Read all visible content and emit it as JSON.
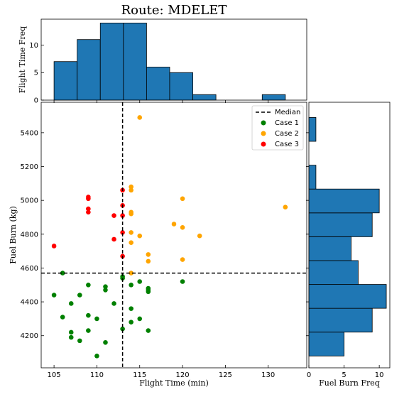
{
  "chart_data": [
    {
      "type": "scatter",
      "title": "Route: MDELET",
      "xlabel": "Flight Time (min)",
      "ylabel": "Fuel Burn (kg)",
      "xlim": [
        103.5,
        134.5
      ],
      "ylim": [
        4010,
        5580
      ],
      "x_ticks": [
        105,
        110,
        115,
        120,
        125,
        130
      ],
      "y_ticks": [
        4200,
        4400,
        4600,
        4800,
        5000,
        5200,
        5400
      ],
      "median": {
        "label": "Median",
        "x": 113,
        "y": 4570
      },
      "legend_position": "top-right",
      "series": [
        {
          "name": "Case 1",
          "color": "#008000",
          "points": [
            [
              105,
              4440
            ],
            [
              106,
              4570
            ],
            [
              106,
              4310
            ],
            [
              107,
              4390
            ],
            [
              107,
              4220
            ],
            [
              107,
              4190
            ],
            [
              108,
              4440
            ],
            [
              108,
              4170
            ],
            [
              109,
              4500
            ],
            [
              109,
              4320
            ],
            [
              109,
              4230
            ],
            [
              110,
              4300
            ],
            [
              110,
              4080
            ],
            [
              111,
              4490
            ],
            [
              111,
              4470
            ],
            [
              111,
              4160
            ],
            [
              112,
              4390
            ],
            [
              113,
              4550
            ],
            [
              113,
              4540
            ],
            [
              113,
              4240
            ],
            [
              114,
              4500
            ],
            [
              114,
              4360
            ],
            [
              114,
              4280
            ],
            [
              115,
              4520
            ],
            [
              115,
              4300
            ],
            [
              116,
              4480
            ],
            [
              116,
              4470
            ],
            [
              116,
              4460
            ],
            [
              116,
              4230
            ],
            [
              120,
              4520
            ]
          ]
        },
        {
          "name": "Case 2",
          "color": "#FFA500",
          "points": [
            [
              114,
              5080
            ],
            [
              114,
              5060
            ],
            [
              114,
              4930
            ],
            [
              114,
              4920
            ],
            [
              114,
              4810
            ],
            [
              114,
              4750
            ],
            [
              114,
              4570
            ],
            [
              115,
              5490
            ],
            [
              115,
              4790
            ],
            [
              116,
              4680
            ],
            [
              116,
              4640
            ],
            [
              119,
              4860
            ],
            [
              120,
              5010
            ],
            [
              120,
              4840
            ],
            [
              120,
              4650
            ],
            [
              122,
              4790
            ],
            [
              132,
              4960
            ]
          ]
        },
        {
          "name": "Case 3",
          "color": "#FF0000",
          "points": [
            [
              105,
              4730
            ],
            [
              109,
              5020
            ],
            [
              109,
              5010
            ],
            [
              109,
              4950
            ],
            [
              109,
              4930
            ],
            [
              112,
              4910
            ],
            [
              112,
              4770
            ],
            [
              113,
              5060
            ],
            [
              113,
              4970
            ],
            [
              113,
              4910
            ],
            [
              113,
              4810
            ],
            [
              113,
              4670
            ]
          ]
        }
      ]
    },
    {
      "type": "bar",
      "orientation": "vertical",
      "ylabel": "Flight Time Freq",
      "ylim": [
        0,
        14.7
      ],
      "y_ticks": [
        0,
        5,
        10
      ],
      "bin_edges": [
        105,
        107.7,
        110.4,
        113.1,
        115.8,
        118.5,
        121.2,
        123.9,
        126.6,
        129.3,
        132
      ],
      "values": [
        7,
        11,
        14,
        14,
        6,
        5,
        1,
        0,
        0,
        1
      ],
      "color": "#1f77b4"
    },
    {
      "type": "bar",
      "orientation": "horizontal",
      "xlabel": "Fuel Burn Freq",
      "xlim": [
        0,
        11.5
      ],
      "x_ticks": [
        0,
        5,
        10
      ],
      "bin_edges": [
        4080,
        4221,
        4362,
        4503,
        4644,
        4785,
        4926,
        5067,
        5208,
        5349,
        5490
      ],
      "values": [
        5,
        9,
        11,
        7,
        6,
        9,
        10,
        1,
        0,
        1
      ],
      "color": "#1f77b4"
    }
  ]
}
